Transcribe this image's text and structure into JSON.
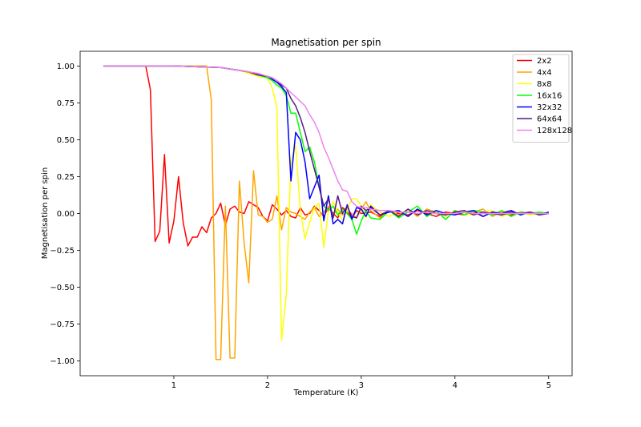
{
  "chart_data": {
    "type": "line",
    "title": "Magnetisation per spin",
    "xlabel": "Temperature (K)",
    "ylabel": "Magnetisation per spin",
    "xlim": [
      0.0,
      5.25
    ],
    "ylim": [
      -1.1,
      1.1
    ],
    "xticks": [
      1,
      2,
      3,
      4,
      5
    ],
    "yticks": [
      -1.0,
      -0.75,
      -0.5,
      -0.25,
      0.0,
      0.25,
      0.5,
      0.75,
      1.0
    ],
    "ytick_labels": [
      "−1.00",
      "−0.75",
      "−0.50",
      "−0.25",
      "0.00",
      "0.25",
      "0.50",
      "0.75",
      "1.00"
    ],
    "grid": false,
    "legend_position": "top-right",
    "series": [
      {
        "name": "2x2",
        "color": "#ff0000",
        "x": [
          0.25,
          0.5,
          0.7,
          0.75,
          0.8,
          0.85,
          0.9,
          0.95,
          1.0,
          1.05,
          1.1,
          1.15,
          1.2,
          1.25,
          1.3,
          1.35,
          1.4,
          1.45,
          1.5,
          1.55,
          1.6,
          1.65,
          1.7,
          1.75,
          1.8,
          1.85,
          1.9,
          1.95,
          2.0,
          2.05,
          2.1,
          2.15,
          2.2,
          2.25,
          2.3,
          2.35,
          2.4,
          2.45,
          2.5,
          2.55,
          2.6,
          2.65,
          2.7,
          2.75,
          2.8,
          2.85,
          2.9,
          2.95,
          3.0,
          3.1,
          3.2,
          3.3,
          3.4,
          3.5,
          3.6,
          3.7,
          3.8,
          3.9,
          4.0,
          4.1,
          4.2,
          4.3,
          4.4,
          4.5,
          4.6,
          4.7,
          4.8,
          4.9,
          5.0
        ],
        "y": [
          1.0,
          1.0,
          1.0,
          0.84,
          -0.19,
          -0.12,
          0.4,
          -0.2,
          -0.05,
          0.25,
          -0.06,
          -0.22,
          -0.16,
          -0.16,
          -0.09,
          -0.13,
          -0.03,
          0.0,
          0.07,
          -0.08,
          0.03,
          0.05,
          0.01,
          0.0,
          0.08,
          0.06,
          0.04,
          -0.02,
          -0.05,
          0.06,
          0.03,
          -0.01,
          0.02,
          -0.02,
          -0.03,
          0.04,
          -0.01,
          0.0,
          0.05,
          0.02,
          -0.02,
          0.04,
          0.0,
          -0.03,
          0.04,
          0.01,
          -0.03,
          0.02,
          0.0,
          0.01,
          -0.02,
          0.02,
          0.0,
          -0.01,
          0.02,
          0.0,
          -0.02,
          0.01,
          0.0,
          -0.01,
          0.01,
          -0.02,
          0.01,
          0.0,
          -0.01,
          0.01,
          0.0,
          0.0,
          0.0
        ]
      },
      {
        "name": "4x4",
        "color": "#ffa500",
        "x": [
          0.25,
          0.5,
          1.0,
          1.2,
          1.3,
          1.35,
          1.4,
          1.45,
          1.5,
          1.55,
          1.6,
          1.65,
          1.7,
          1.75,
          1.8,
          1.85,
          1.9,
          1.95,
          2.0,
          2.05,
          2.1,
          2.15,
          2.2,
          2.25,
          2.3,
          2.35,
          2.4,
          2.45,
          2.5,
          2.55,
          2.6,
          2.65,
          2.7,
          2.75,
          2.8,
          2.85,
          2.9,
          2.95,
          3.0,
          3.05,
          3.1,
          3.2,
          3.3,
          3.4,
          3.5,
          3.6,
          3.7,
          3.8,
          3.9,
          4.0,
          4.1,
          4.2,
          4.3,
          4.4,
          4.5,
          4.6,
          4.7,
          4.8,
          4.9,
          5.0
        ],
        "y": [
          1.0,
          1.0,
          1.0,
          1.0,
          1.0,
          1.0,
          0.77,
          -0.99,
          -0.99,
          0.05,
          -0.98,
          -0.98,
          0.22,
          -0.2,
          -0.47,
          0.29,
          -0.01,
          -0.02,
          -0.06,
          -0.04,
          0.12,
          -0.11,
          0.04,
          0.01,
          0.0,
          -0.02,
          -0.04,
          0.01,
          0.04,
          -0.02,
          0.01,
          0.05,
          -0.01,
          0.03,
          -0.01,
          0.01,
          0.0,
          -0.03,
          0.03,
          0.08,
          0.02,
          -0.03,
          0.02,
          -0.01,
          0.03,
          -0.02,
          0.03,
          0.01,
          -0.02,
          0.02,
          -0.01,
          0.01,
          0.03,
          -0.02,
          0.01,
          0.02,
          -0.01,
          0.01,
          0.0,
          0.0
        ]
      },
      {
        "name": "8x8",
        "color": "#ffff00",
        "x": [
          0.25,
          0.5,
          1.0,
          1.5,
          1.6,
          1.7,
          1.8,
          1.9,
          2.0,
          2.05,
          2.1,
          2.15,
          2.2,
          2.25,
          2.3,
          2.35,
          2.4,
          2.45,
          2.5,
          2.55,
          2.6,
          2.65,
          2.7,
          2.75,
          2.8,
          2.85,
          2.9,
          2.95,
          3.0,
          3.05,
          3.1,
          3.2,
          3.3,
          3.4,
          3.5,
          3.6,
          3.7,
          3.8,
          3.9,
          4.0,
          4.1,
          4.2,
          4.3,
          4.4,
          4.5,
          4.6,
          4.7,
          4.8,
          4.9,
          5.0
        ],
        "y": [
          1.0,
          1.0,
          1.0,
          0.99,
          0.98,
          0.97,
          0.95,
          0.93,
          0.92,
          0.85,
          0.72,
          -0.86,
          -0.55,
          0.36,
          0.46,
          0.02,
          -0.17,
          -0.06,
          0.04,
          0.07,
          -0.23,
          0.02,
          0.08,
          0.01,
          -0.05,
          0.03,
          0.1,
          0.1,
          0.05,
          -0.03,
          0.06,
          0.01,
          -0.02,
          0.02,
          -0.02,
          0.03,
          -0.01,
          0.01,
          -0.02,
          0.02,
          0.0,
          -0.01,
          0.01,
          0.02,
          -0.02,
          0.0,
          0.01,
          -0.01,
          0.0,
          0.0
        ]
      },
      {
        "name": "16x16",
        "color": "#00ff00",
        "x": [
          0.25,
          0.5,
          1.0,
          1.5,
          1.6,
          1.7,
          1.8,
          1.9,
          2.0,
          2.05,
          2.1,
          2.15,
          2.2,
          2.25,
          2.3,
          2.35,
          2.4,
          2.45,
          2.5,
          2.55,
          2.6,
          2.65,
          2.7,
          2.75,
          2.8,
          2.85,
          2.9,
          2.95,
          3.0,
          3.05,
          3.1,
          3.2,
          3.3,
          3.4,
          3.5,
          3.6,
          3.7,
          3.8,
          3.9,
          4.0,
          4.1,
          4.2,
          4.3,
          4.4,
          4.5,
          4.6,
          4.7,
          4.8,
          4.9,
          5.0
        ],
        "y": [
          1.0,
          1.0,
          1.0,
          0.99,
          0.98,
          0.97,
          0.96,
          0.94,
          0.92,
          0.9,
          0.87,
          0.85,
          0.8,
          0.68,
          0.68,
          0.55,
          0.42,
          0.45,
          0.35,
          0.18,
          0.05,
          0.02,
          0.05,
          -0.01,
          0.03,
          0.0,
          -0.04,
          -0.14,
          -0.05,
          0.02,
          -0.03,
          -0.04,
          0.02,
          -0.03,
          0.01,
          0.05,
          -0.02,
          0.02,
          -0.04,
          0.02,
          -0.01,
          0.02,
          0.01,
          -0.01,
          0.02,
          -0.02,
          0.01,
          0.0,
          0.01,
          0.0
        ]
      },
      {
        "name": "32x32",
        "color": "#0000ff",
        "x": [
          0.25,
          0.5,
          1.0,
          1.5,
          1.6,
          1.7,
          1.8,
          1.9,
          2.0,
          2.05,
          2.1,
          2.15,
          2.2,
          2.25,
          2.3,
          2.35,
          2.4,
          2.45,
          2.5,
          2.55,
          2.6,
          2.65,
          2.7,
          2.75,
          2.8,
          2.85,
          2.9,
          2.95,
          3.0,
          3.05,
          3.1,
          3.2,
          3.3,
          3.4,
          3.5,
          3.6,
          3.7,
          3.8,
          3.9,
          4.0,
          4.1,
          4.2,
          4.3,
          4.4,
          4.5,
          4.6,
          4.7,
          4.8,
          4.9,
          5.0
        ],
        "y": [
          1.0,
          1.0,
          1.0,
          0.99,
          0.98,
          0.97,
          0.96,
          0.94,
          0.93,
          0.91,
          0.89,
          0.86,
          0.82,
          0.22,
          0.55,
          0.5,
          0.35,
          0.1,
          0.18,
          0.26,
          -0.05,
          0.12,
          -0.07,
          -0.04,
          -0.07,
          0.06,
          -0.04,
          0.04,
          0.03,
          -0.02,
          0.05,
          -0.01,
          0.01,
          0.02,
          -0.02,
          0.03,
          -0.01,
          0.02,
          0.0,
          -0.01,
          0.01,
          0.02,
          -0.02,
          0.01,
          0.0,
          0.02,
          -0.01,
          0.01,
          -0.01,
          0.01
        ]
      },
      {
        "name": "64x64",
        "color": "#551a8b",
        "x": [
          0.25,
          0.5,
          1.0,
          1.5,
          1.6,
          1.7,
          1.8,
          1.9,
          2.0,
          2.05,
          2.1,
          2.15,
          2.2,
          2.25,
          2.3,
          2.35,
          2.4,
          2.45,
          2.5,
          2.55,
          2.6,
          2.65,
          2.7,
          2.75,
          2.8,
          2.85,
          2.9,
          2.95,
          3.0,
          3.05,
          3.1,
          3.2,
          3.3,
          3.4,
          3.5,
          3.6,
          3.7,
          3.8,
          3.9,
          4.0,
          4.1,
          4.2,
          4.3,
          4.4,
          4.5,
          4.6,
          4.7,
          4.8,
          4.9,
          5.0
        ],
        "y": [
          1.0,
          1.0,
          1.0,
          0.99,
          0.98,
          0.97,
          0.96,
          0.94,
          0.93,
          0.92,
          0.9,
          0.87,
          0.85,
          0.78,
          0.73,
          0.65,
          0.55,
          0.42,
          0.3,
          0.18,
          0.05,
          0.1,
          -0.03,
          0.12,
          0.0,
          0.05,
          -0.02,
          -0.03,
          0.05,
          0.02,
          0.04,
          -0.01,
          0.02,
          -0.02,
          0.03,
          -0.01,
          0.02,
          0.0,
          -0.01,
          0.01,
          0.02,
          -0.01,
          0.01,
          0.0,
          -0.01,
          0.01,
          0.0,
          0.01,
          -0.01,
          0.0
        ]
      },
      {
        "name": "128x128",
        "color": "#ee82ee",
        "x": [
          0.25,
          0.5,
          1.0,
          1.5,
          1.6,
          1.7,
          1.8,
          1.9,
          2.0,
          2.05,
          2.1,
          2.15,
          2.2,
          2.25,
          2.3,
          2.35,
          2.4,
          2.45,
          2.5,
          2.55,
          2.6,
          2.65,
          2.7,
          2.75,
          2.8,
          2.85,
          2.9,
          2.95,
          3.0,
          3.05,
          3.1,
          3.2,
          3.3,
          3.4,
          3.5,
          3.6,
          3.7,
          3.8,
          3.9,
          4.0,
          4.1,
          4.2,
          4.3,
          4.4,
          4.5,
          4.6,
          4.7,
          4.8,
          4.9,
          5.0
        ],
        "y": [
          1.0,
          1.0,
          1.0,
          0.99,
          0.98,
          0.97,
          0.96,
          0.95,
          0.93,
          0.92,
          0.9,
          0.88,
          0.85,
          0.82,
          0.79,
          0.76,
          0.73,
          0.67,
          0.62,
          0.55,
          0.45,
          0.38,
          0.3,
          0.22,
          0.16,
          0.15,
          0.08,
          0.05,
          0.04,
          0.04,
          0.03,
          0.02,
          0.02,
          0.01,
          0.01,
          0.0,
          0.01,
          0.0,
          0.0,
          0.0,
          0.01,
          0.0,
          0.0,
          0.0,
          0.0,
          0.0,
          0.0,
          0.0,
          0.0,
          0.0
        ]
      }
    ]
  }
}
